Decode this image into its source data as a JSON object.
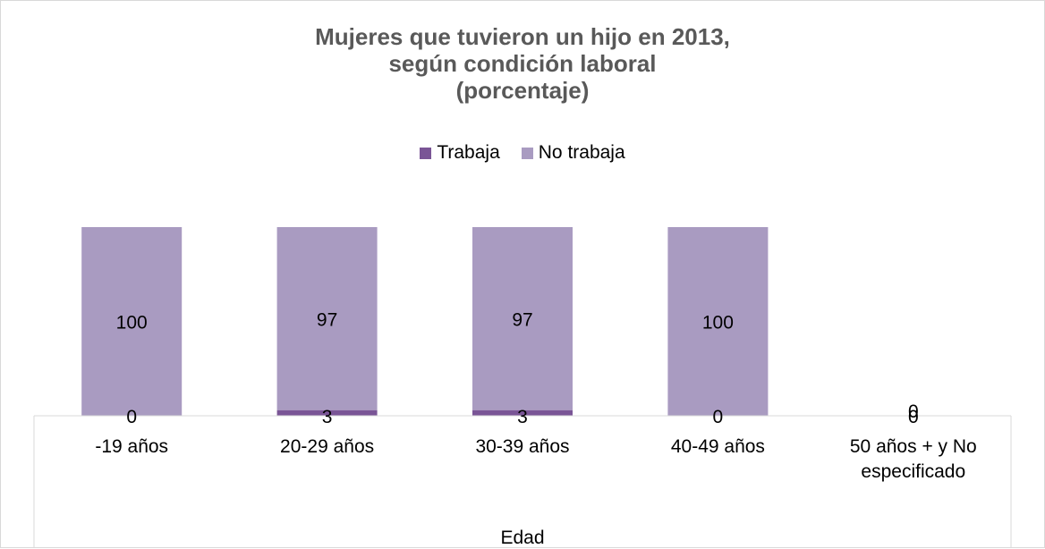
{
  "chart_data": {
    "type": "bar",
    "stacked": true,
    "title_lines": [
      "Mujeres que tuvieron un hijo en 2013,",
      "según condición laboral",
      "(porcentaje)"
    ],
    "xlabel": "Edad",
    "ylabel": "",
    "ylim": [
      0,
      100
    ],
    "grid": false,
    "legend_position": "top",
    "categories": [
      [
        "-19 años"
      ],
      [
        "20-29 años"
      ],
      [
        "30-39 años"
      ],
      [
        "40-49 años"
      ],
      [
        "50 años + y No",
        "especificado"
      ]
    ],
    "series": [
      {
        "name": "Trabaja",
        "values": [
          0,
          3,
          3,
          0,
          0
        ],
        "color": "#7a5596"
      },
      {
        "name": "No trabaja",
        "values": [
          100,
          97,
          97,
          100,
          0
        ],
        "color": "#a99bc1"
      }
    ]
  }
}
